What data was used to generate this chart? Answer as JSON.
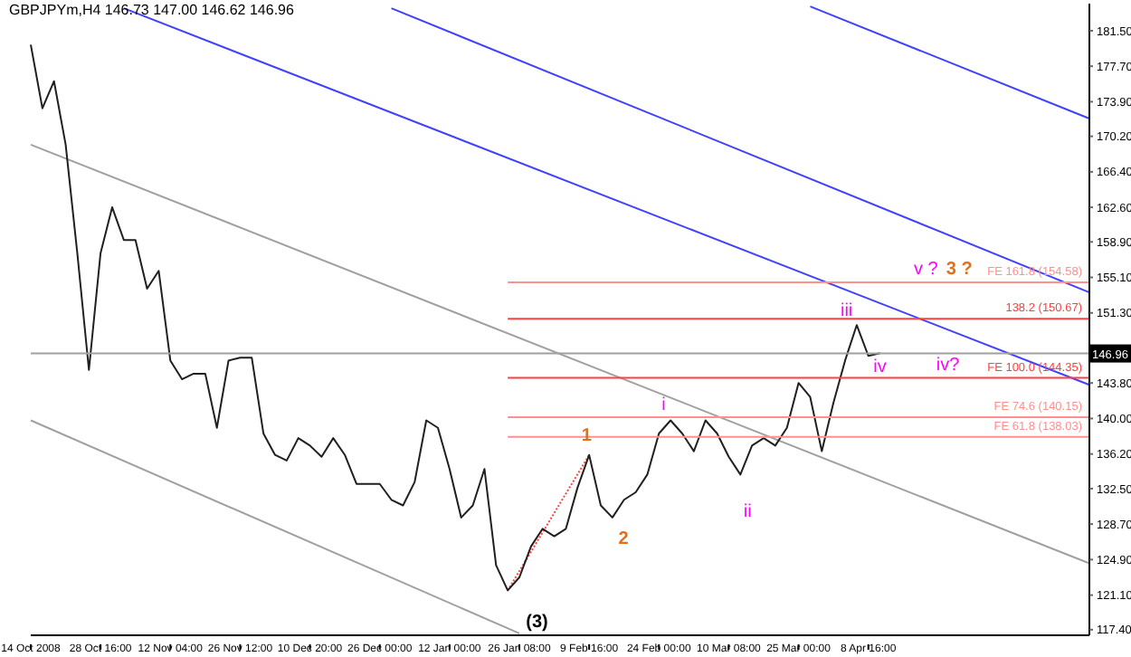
{
  "chart_data": {
    "type": "line",
    "title": "GBPJPYm,H4  146.73 147.00 146.62 146.96",
    "categories": [
      "14 Oct 2008",
      null,
      null,
      null,
      null,
      null,
      "28 Oct 16:00",
      null,
      null,
      null,
      null,
      null,
      "12 Nov 04:00",
      null,
      null,
      null,
      null,
      null,
      "26 Nov 12:00",
      null,
      null,
      null,
      null,
      null,
      "10 Dec 20:00",
      null,
      null,
      null,
      null,
      null,
      "26 Dec 00:00",
      null,
      null,
      null,
      null,
      null,
      "12 Jan 00:00",
      null,
      null,
      null,
      null,
      null,
      "26 Jan 08:00",
      null,
      null,
      null,
      null,
      null,
      "9 Feb 16:00",
      null,
      null,
      null,
      null,
      null,
      "24 Feb 00:00",
      null,
      null,
      null,
      null,
      null,
      "10 Mar 08:00",
      null,
      null,
      null,
      null,
      null,
      "25 Mar 00:00",
      null,
      null,
      null,
      null,
      null,
      "8 Apr 16:00",
      null,
      null,
      null,
      null,
      null,
      null,
      null,
      null,
      null,
      null,
      null,
      null,
      null,
      null,
      null,
      null,
      null,
      null,
      null
    ],
    "series": [
      {
        "color": "#a0a0a0",
        "values": [
          169.3,
          null,
          null,
          null,
          null,
          null,
          null,
          null,
          null,
          null,
          null,
          null,
          null,
          null,
          null,
          null,
          null,
          null,
          null,
          null,
          null,
          null,
          null,
          null,
          null,
          null,
          null,
          null,
          null,
          null,
          null,
          null,
          null,
          null,
          null,
          null,
          null,
          null,
          null,
          null,
          null,
          null,
          null,
          null,
          null,
          null,
          null,
          null,
          null,
          null,
          null,
          null,
          null,
          null,
          null,
          null,
          null,
          null,
          null,
          null,
          null,
          null,
          null,
          null,
          null,
          null,
          null,
          null,
          null,
          null,
          null,
          null,
          null,
          null,
          null,
          null,
          null,
          null,
          null,
          null,
          null,
          null,
          null,
          null,
          null,
          null,
          null,
          null,
          null,
          null,
          null,
          124.5
        ]
      },
      {
        "color": "#a0a0a0",
        "values": [
          139.8,
          null,
          null,
          null,
          null,
          null,
          null,
          null,
          null,
          null,
          null,
          null,
          null,
          null,
          null,
          null,
          null,
          null,
          null,
          null,
          null,
          null,
          null,
          null,
          null,
          null,
          null,
          null,
          null,
          null,
          null,
          null,
          null,
          null,
          null,
          null,
          null,
          null,
          null,
          null,
          null,
          null,
          117.0,
          null,
          null,
          null,
          null,
          null,
          null,
          null,
          null,
          null,
          null,
          null,
          null,
          null,
          null,
          null,
          null,
          null,
          null,
          null,
          null,
          null,
          null,
          null,
          null,
          null,
          null,
          null,
          null,
          null,
          null,
          null,
          null,
          null,
          null,
          null,
          null,
          null,
          null,
          null,
          null,
          null,
          null,
          null,
          null,
          null,
          null,
          null,
          null,
          null
        ]
      },
      {
        "color": "#4040ff",
        "values": [
          null,
          null,
          null,
          null,
          null,
          null,
          null,
          null,
          null,
          null,
          null,
          null,
          null,
          null,
          null,
          null,
          null,
          null,
          null,
          null,
          null,
          null,
          null,
          null,
          null,
          null,
          null,
          null,
          null,
          null,
          null,
          null,
          null,
          null,
          null,
          null,
          null,
          null,
          null,
          null,
          null,
          null,
          null,
          null,
          null,
          null,
          null,
          null,
          null,
          null,
          null,
          null,
          null,
          null,
          null,
          null,
          null,
          null,
          null,
          null,
          null,
          null,
          null,
          null,
          null,
          null,
          null,
          184.1,
          null,
          null,
          null,
          null,
          null,
          null,
          null,
          null,
          null,
          null,
          null,
          null,
          null,
          null,
          null,
          null,
          null,
          null,
          null,
          null,
          null,
          null,
          null,
          172.1
        ]
      },
      {
        "color": "#4040ff",
        "values": [
          null,
          null,
          null,
          null,
          null,
          null,
          null,
          null,
          null,
          null,
          null,
          null,
          null,
          null,
          null,
          null,
          null,
          null,
          null,
          null,
          null,
          null,
          null,
          null,
          null,
          null,
          null,
          null,
          null,
          null,
          null,
          183.9,
          null,
          null,
          null,
          null,
          null,
          null,
          null,
          null,
          null,
          null,
          null,
          null,
          null,
          null,
          null,
          null,
          null,
          null,
          null,
          null,
          null,
          null,
          null,
          null,
          null,
          null,
          null,
          null,
          null,
          null,
          null,
          null,
          null,
          null,
          null,
          null,
          null,
          null,
          null,
          null,
          null,
          null,
          null,
          null,
          null,
          null,
          null,
          null,
          null,
          null,
          null,
          null,
          null,
          null,
          null,
          null,
          null,
          null,
          null,
          153.5
        ]
      },
      {
        "color": "#4040ff",
        "values": [
          null,
          null,
          null,
          null,
          null,
          null,
          null,
          null,
          183.9,
          null,
          null,
          null,
          null,
          null,
          null,
          null,
          null,
          null,
          null,
          null,
          null,
          null,
          null,
          null,
          null,
          null,
          null,
          null,
          null,
          null,
          null,
          null,
          null,
          null,
          null,
          null,
          null,
          null,
          null,
          null,
          null,
          null,
          null,
          null,
          null,
          null,
          null,
          null,
          null,
          null,
          null,
          null,
          null,
          null,
          null,
          null,
          null,
          null,
          null,
          null,
          null,
          null,
          null,
          null,
          null,
          null,
          null,
          null,
          null,
          null,
          null,
          null,
          null,
          null,
          null,
          null,
          null,
          null,
          null,
          null,
          null,
          null,
          null,
          null,
          null,
          null,
          null,
          null,
          null,
          null,
          null,
          143.6
        ]
      },
      {
        "color": "#ff4040",
        "line_style": "dotted",
        "values": [
          null,
          null,
          null,
          null,
          null,
          null,
          null,
          null,
          null,
          null,
          null,
          null,
          null,
          null,
          null,
          null,
          null,
          null,
          null,
          null,
          null,
          null,
          null,
          null,
          null,
          null,
          null,
          null,
          null,
          null,
          null,
          null,
          null,
          null,
          null,
          null,
          null,
          null,
          null,
          null,
          null,
          121.6,
          null,
          null,
          null,
          null,
          null,
          null,
          136.1,
          null,
          null,
          null,
          null,
          null,
          null,
          null,
          null,
          null,
          null,
          null,
          null,
          null,
          null,
          null,
          null,
          null,
          null,
          null,
          null,
          null,
          null,
          null,
          null,
          null,
          null,
          null,
          null,
          null,
          null,
          null,
          null,
          null,
          null,
          null,
          null,
          null,
          null,
          null,
          null,
          null,
          null,
          null
        ]
      },
      {
        "color": "#202020",
        "values": [
          180.0,
          173.2,
          176.1,
          169.3,
          157.7,
          145.2,
          157.7,
          162.6,
          159.1,
          159.1,
          153.9,
          155.8,
          146.2,
          144.2,
          144.8,
          144.8,
          139.0,
          146.2,
          146.5,
          146.5,
          138.4,
          136.1,
          135.5,
          137.9,
          137.1,
          135.9,
          137.9,
          136.1,
          133.0,
          133.0,
          133.0,
          131.3,
          130.7,
          133.2,
          139.8,
          139.0,
          134.6,
          129.4,
          130.7,
          134.6,
          124.3,
          121.6,
          123.0,
          126.3,
          128.2,
          127.4,
          128.2,
          132.6,
          136.1,
          130.7,
          129.4,
          131.3,
          132.1,
          134.0,
          138.4,
          139.8,
          138.4,
          136.5,
          139.8,
          138.4,
          135.9,
          134.0,
          137.1,
          137.9,
          137.1,
          139.0,
          143.8,
          142.3,
          136.5,
          141.7,
          146.2,
          150.0,
          146.7,
          147.0,
          null,
          null,
          null,
          null,
          null,
          null,
          null,
          null,
          null,
          null,
          null,
          null,
          null,
          null,
          null,
          null,
          null,
          null
        ]
      }
    ],
    "ylim": [
      116.8,
      184.4
    ],
    "yticks": [
      {
        "value": 117.4,
        "label": "117.40"
      },
      {
        "value": 121.1,
        "label": "121.10"
      },
      {
        "value": 124.9,
        "label": "124.90"
      },
      {
        "value": 128.7,
        "label": "128.70"
      },
      {
        "value": 132.5,
        "label": "132.50"
      },
      {
        "value": 136.2,
        "label": "136.20"
      },
      {
        "value": 140.0,
        "label": "140.00"
      },
      {
        "value": 143.8,
        "label": "143.80"
      },
      {
        "value": 151.3,
        "label": "151.30"
      },
      {
        "value": 155.1,
        "label": "155.10"
      },
      {
        "value": 158.9,
        "label": "158.90"
      },
      {
        "value": 162.6,
        "label": "162.60"
      },
      {
        "value": 166.4,
        "label": "166.40"
      },
      {
        "value": 170.2,
        "label": "170.20"
      },
      {
        "value": 173.9,
        "label": "173.90"
      },
      {
        "value": 177.7,
        "label": "177.70"
      },
      {
        "value": 181.5,
        "label": "181.50"
      }
    ],
    "ref_lines": [
      {
        "axis": "y",
        "value": 146.96,
        "label": "146.96",
        "color": "#a0a0a0"
      },
      {
        "axis": "y",
        "value": 154.58,
        "label": "FE 161.8 (154.58)",
        "color": "#ff9090"
      },
      {
        "axis": "y",
        "value": 150.67,
        "label": "138.2 (150.67)",
        "color": "#ff4040"
      },
      {
        "axis": "y",
        "value": 144.35,
        "label": "FE 100.0 (144.35)",
        "color": "#ff4040"
      },
      {
        "axis": "y",
        "value": 140.15,
        "label": "FE 74.6 (140.15)",
        "color": "#ff9090"
      },
      {
        "axis": "y",
        "value": 138.03,
        "label": "FE 61.8 (138.03)",
        "color": "#ff9090"
      }
    ],
    "annotations": [
      "(3)",
      {
        "text": "1",
        "y": 136.1
      },
      {
        "text": "2",
        "y": 129.4
      },
      {
        "text": "i",
        "y": 139.8
      },
      {
        "text": "ii",
        "y": 134.0
      },
      {
        "text": "iii",
        "y": 150.0
      },
      {
        "text": "iv",
        "y": 146.7
      },
      {
        "text": "iv?",
        "y": 144.35
      },
      {
        "text": "v ?",
        "y": 154.58
      },
      {
        "text": "3 ?",
        "y": 154.58
      }
    ],
    "grid": false,
    "legend": false,
    "marker": "none",
    "line_style": "solid"
  }
}
